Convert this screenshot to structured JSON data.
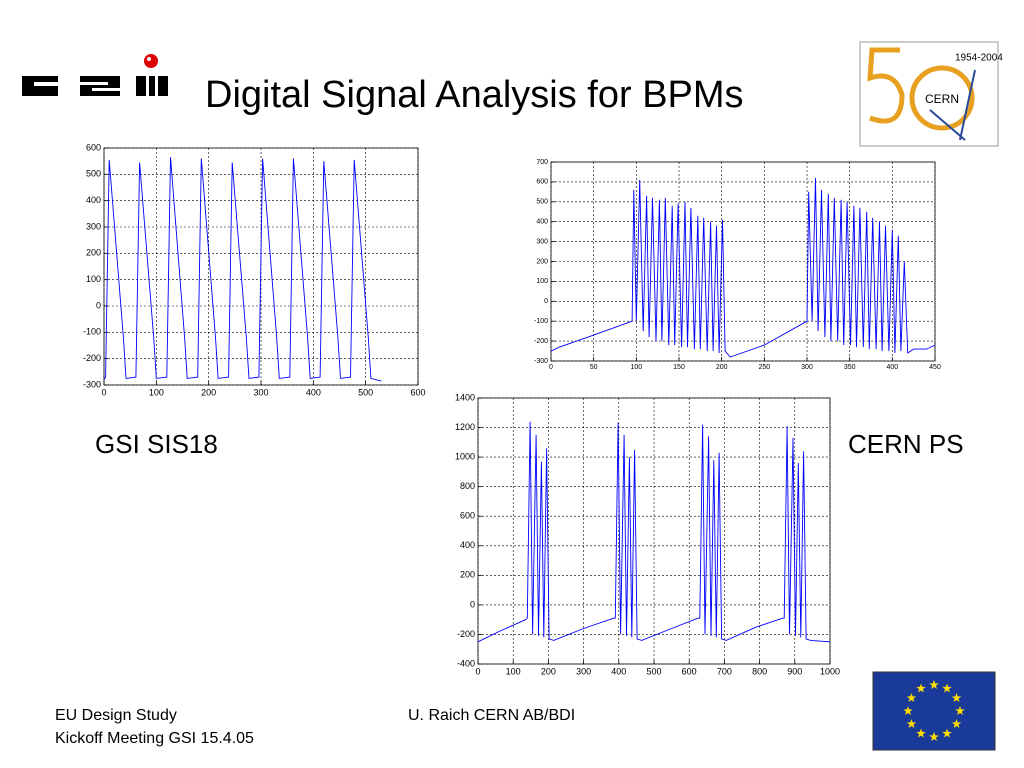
{
  "slide": {
    "title": "Digital Signal Analysis for BPMs",
    "label_left": "GSI SIS18",
    "label_right": "CERN PS",
    "footer_left_1": "EU Design Study",
    "footer_left_2": "Kickoff Meeting  GSI 15.4.05",
    "footer_center": "U. Raich CERN AB/BDI",
    "cern_logo_years": "1954-2004",
    "cern_logo_name": "CERN"
  },
  "chart_data": [
    {
      "type": "line",
      "x": [
        0,
        3,
        10,
        37,
        42,
        61,
        68,
        95,
        100,
        120,
        127,
        154,
        159,
        179,
        186,
        213,
        218,
        238,
        245,
        272,
        277,
        296,
        303,
        330,
        335,
        355,
        362,
        389,
        394,
        413,
        420,
        447,
        452,
        471,
        478,
        505,
        510,
        530
      ],
      "series": [
        {
          "color": "#0000ff",
          "values": [
            -280,
            -270,
            555,
            -120,
            -275,
            -270,
            545,
            -120,
            -275,
            -270,
            565,
            -120,
            -275,
            -270,
            560,
            -120,
            -275,
            -270,
            545,
            -120,
            -275,
            -270,
            560,
            -120,
            -275,
            -270,
            560,
            -120,
            -275,
            -270,
            550,
            -120,
            -275,
            -270,
            555,
            -120,
            -275,
            -285
          ]
        }
      ],
      "xlim": [
        0,
        600
      ],
      "ylim": [
        -300,
        600
      ],
      "xticks": [
        0,
        100,
        200,
        300,
        400,
        500,
        600
      ],
      "yticks": [
        -300,
        -200,
        -100,
        0,
        100,
        200,
        300,
        400,
        500,
        600
      ],
      "grid": true
    },
    {
      "type": "line",
      "x": [
        0,
        10,
        50,
        95,
        97,
        100,
        104,
        108,
        112,
        115,
        119,
        123,
        127,
        130,
        134,
        138,
        142,
        145,
        149,
        153,
        157,
        160,
        164,
        168,
        172,
        175,
        179,
        183,
        187,
        190,
        194,
        197,
        201,
        204,
        210,
        250,
        300,
        302,
        306,
        310,
        313,
        317,
        321,
        325,
        328,
        332,
        336,
        340,
        343,
        347,
        351,
        355,
        358,
        362,
        366,
        370,
        373,
        377,
        381,
        385,
        388,
        392,
        396,
        400,
        403,
        407,
        410,
        414,
        418,
        425,
        440,
        450
      ],
      "series": [
        {
          "color": "#0000ff",
          "values": [
            -250,
            -230,
            -170,
            -100,
            560,
            -100,
            610,
            -150,
            530,
            -180,
            520,
            -200,
            510,
            -200,
            520,
            -220,
            480,
            -220,
            490,
            -230,
            500,
            -230,
            470,
            -240,
            430,
            -240,
            420,
            -250,
            400,
            -250,
            380,
            -260,
            410,
            -250,
            -280,
            -220,
            -100,
            550,
            -100,
            620,
            -150,
            560,
            -180,
            540,
            -200,
            520,
            -200,
            510,
            -220,
            500,
            -220,
            480,
            -230,
            470,
            -230,
            450,
            -240,
            420,
            -240,
            400,
            -250,
            380,
            -250,
            360,
            -260,
            330,
            -250,
            200,
            -260,
            -240,
            -240,
            -220
          ]
        }
      ],
      "xlim": [
        0,
        450
      ],
      "ylim": [
        -300,
        700
      ],
      "xticks": [
        0,
        50,
        100,
        150,
        200,
        250,
        300,
        350,
        400,
        450
      ],
      "yticks": [
        -300,
        -200,
        -100,
        0,
        100,
        200,
        300,
        400,
        500,
        600,
        700
      ],
      "grid": true
    },
    {
      "type": "line",
      "x": [
        0,
        60,
        135,
        140,
        148,
        155,
        165,
        172,
        180,
        187,
        195,
        202,
        215,
        300,
        385,
        390,
        398,
        405,
        415,
        422,
        430,
        437,
        445,
        452,
        465,
        550,
        625,
        630,
        638,
        645,
        655,
        662,
        670,
        677,
        685,
        692,
        705,
        790,
        865,
        870,
        878,
        885,
        895,
        902,
        910,
        917,
        925,
        932,
        945,
        1000
      ],
      "series": [
        {
          "color": "#0000ff",
          "values": [
            -250,
            -180,
            -100,
            -90,
            1240,
            -200,
            1150,
            -210,
            970,
            -220,
            1060,
            -230,
            -240,
            -160,
            -90,
            -90,
            1230,
            -200,
            1150,
            -210,
            1000,
            -220,
            1050,
            -230,
            -240,
            -160,
            -90,
            -90,
            1220,
            -200,
            1140,
            -210,
            980,
            -220,
            1030,
            -230,
            -240,
            -150,
            -90,
            -90,
            1210,
            -200,
            1130,
            -210,
            960,
            -220,
            1040,
            -230,
            -240,
            -250
          ]
        }
      ],
      "xlim": [
        0,
        1000
      ],
      "ylim": [
        -400,
        1400
      ],
      "xticks": [
        0,
        100,
        200,
        300,
        400,
        500,
        600,
        700,
        800,
        900,
        1000
      ],
      "yticks": [
        -400,
        -200,
        0,
        200,
        400,
        600,
        800,
        1000,
        1200,
        1400
      ],
      "grid": true
    }
  ]
}
